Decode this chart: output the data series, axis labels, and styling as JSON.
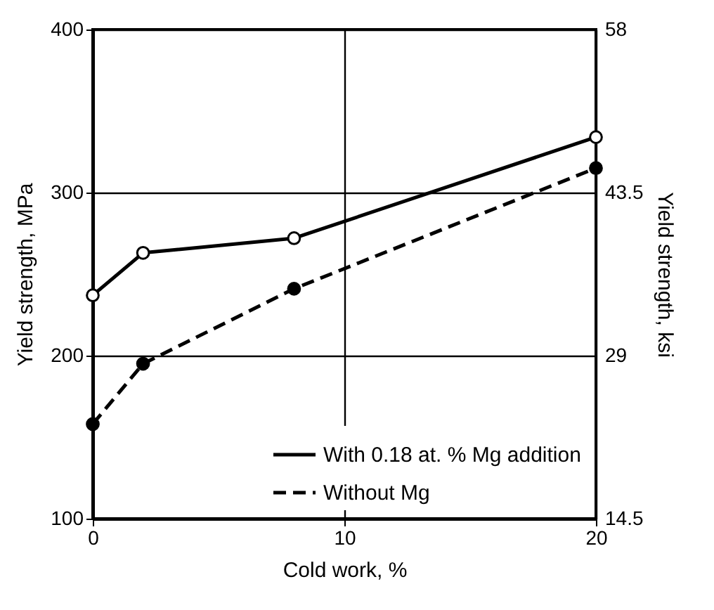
{
  "chart_data": {
    "type": "line",
    "xlabel": "Cold work, %",
    "ylabel": "Yield strength, MPa",
    "y2label": "Yield strength, ksi",
    "x": [
      0,
      2,
      8,
      20
    ],
    "series": [
      {
        "name": "With 0.18 at. % Mg addition",
        "color": "#000000",
        "line_style": "solid",
        "values": [
          237,
          263,
          272,
          334
        ]
      },
      {
        "name": "Without Mg",
        "color": "#000000",
        "line_style": "dashed",
        "values": [
          158,
          195,
          241,
          315
        ]
      }
    ],
    "xlim": [
      0,
      20
    ],
    "xticks": [
      0,
      10,
      20
    ],
    "ylim": [
      100,
      400
    ],
    "yticks": [
      100,
      200,
      300,
      400
    ],
    "y2lim": [
      14.5,
      58
    ],
    "y2ticks": [
      14.5,
      29,
      43.5,
      58
    ],
    "grid": true,
    "legend": "bottom right",
    "marker": "circle"
  }
}
